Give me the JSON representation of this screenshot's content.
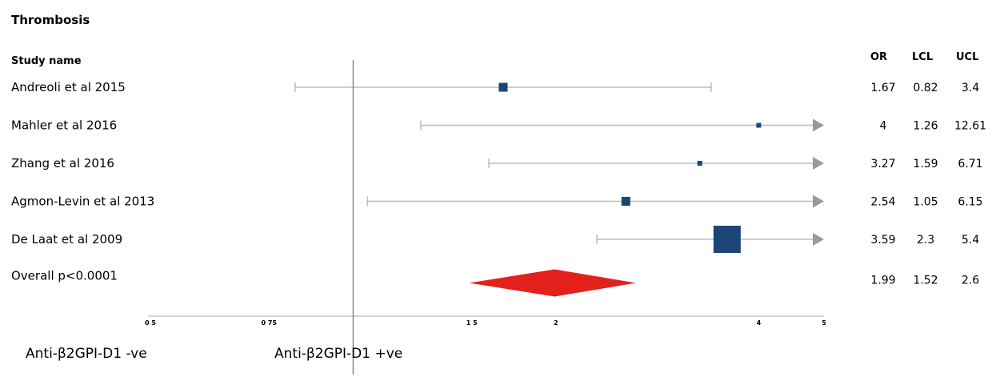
{
  "chart_data": {
    "type": "forest",
    "title": "Thrombosis",
    "column_headers": {
      "study": "Study name",
      "or": "OR",
      "lcl": "LCL",
      "ucl": "UCL"
    },
    "x_scale": "log",
    "x_ticks": [
      {
        "value": 0.5,
        "label": "0 5"
      },
      {
        "value": 0.75,
        "label": "0 75"
      },
      {
        "value": 1.5,
        "label": "1 5"
      },
      {
        "value": 2,
        "label": "2"
      },
      {
        "value": 4,
        "label": "4"
      },
      {
        "value": 5,
        "label": "5"
      }
    ],
    "xlim": [
      0.5,
      5
    ],
    "reference_line": 1,
    "studies": [
      {
        "name": "Andreoli et al 2015",
        "or": 1.67,
        "lcl": 0.82,
        "ucl": 3.4,
        "or_label": "1.67",
        "lcl_label": "0.82",
        "ucl_label": "3.4",
        "weight": "medium"
      },
      {
        "name": "Mahler et al 2016",
        "or": 4,
        "lcl": 1.26,
        "ucl": 12.61,
        "or_label": "4",
        "lcl_label": "1.26",
        "ucl_label": "12.61",
        "weight": "small"
      },
      {
        "name": "Zhang et al 2016",
        "or": 3.27,
        "lcl": 1.59,
        "ucl": 6.71,
        "or_label": "3.27",
        "lcl_label": "1.59",
        "ucl_label": "6.71",
        "weight": "small"
      },
      {
        "name": "Agmon-Levin et al 2013",
        "or": 2.54,
        "lcl": 1.05,
        "ucl": 6.15,
        "or_label": "2.54",
        "lcl_label": "1.05",
        "ucl_label": "6.15",
        "weight": "medium"
      },
      {
        "name": "De Laat et al 2009",
        "or": 3.59,
        "lcl": 2.3,
        "ucl": 5.4,
        "or_label": "3.59",
        "lcl_label": "2.3",
        "ucl_label": "5.4",
        "weight": "large"
      }
    ],
    "overall": {
      "name": "Overall p<0.0001",
      "or": 1.99,
      "lcl": 1.52,
      "ucl": 2.6,
      "or_label": "1.99",
      "lcl_label": "1.52",
      "ucl_label": "2.6"
    },
    "favours_left": "Anti-β2GPI-D1 -ve",
    "favours_right": "Anti-β2GPI-D1 +ve",
    "colors": {
      "marker": "#1c4577",
      "diamond": "#e3201b",
      "ci_line": "#bdbdbd",
      "arrow": "#9a9a9a",
      "axis": "#888888"
    }
  }
}
